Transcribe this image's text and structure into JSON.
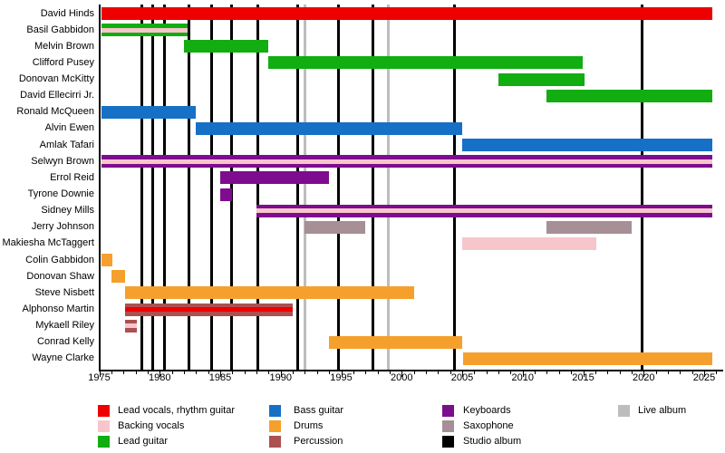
{
  "chart_data": {
    "type": "gantt-timeline",
    "description": "Band membership timeline: horizontal bars per member by instrument color; vertical lines mark albums",
    "x_axis": {
      "min": 1975,
      "max": 2026,
      "labeled_ticks": [
        "1975",
        "1980",
        "1985",
        "1990",
        "1995",
        "2000",
        "2005",
        "2010",
        "2015",
        "2020",
        "2025"
      ],
      "labeled_tick_years": [
        1975,
        1980,
        1985,
        1990,
        1995,
        2000,
        2005,
        2010,
        2015,
        2020,
        2025
      ],
      "minor_tick_every_years": 1
    },
    "colors": {
      "lead_vocals_rhythm_guitar": "#ee0000",
      "backing_vocals": "#f7c6cc",
      "lead_guitar": "#11ad11",
      "bass_guitar": "#1570c6",
      "drums": "#f5a02d",
      "percussion": "#ac5050",
      "keyboards": "#7e0c8e",
      "saxophone": "#a78f96",
      "studio_album": "#000000",
      "live_album": "#bdbdbd"
    },
    "members": [
      {
        "name": "David Hinds",
        "roles": [
          "Lead vocals, rhythm guitar"
        ],
        "color": "#ee0000",
        "stripe": null,
        "spans": [
          {
            "start": 1975.2,
            "end": 2025.7
          }
        ]
      },
      {
        "name": "Basil Gabbidon",
        "roles": [
          "Lead guitar",
          "Backing vocals"
        ],
        "color": "#11ad11",
        "stripe": "#f7c6cc",
        "spans": [
          {
            "start": 1975.2,
            "end": 1982.3
          }
        ]
      },
      {
        "name": "Melvin Brown",
        "roles": [
          "Lead guitar"
        ],
        "color": "#11ad11",
        "stripe": null,
        "spans": [
          {
            "start": 1982.0,
            "end": 1989.0
          }
        ]
      },
      {
        "name": "Clifford Pusey",
        "roles": [
          "Lead guitar"
        ],
        "color": "#11ad11",
        "stripe": null,
        "spans": [
          {
            "start": 1989.0,
            "end": 2015.0
          }
        ]
      },
      {
        "name": "Donovan McKitty",
        "roles": [
          "Lead guitar"
        ],
        "color": "#11ad11",
        "stripe": null,
        "spans": [
          {
            "start": 2008.0,
            "end": 2015.1
          }
        ]
      },
      {
        "name": "David Ellecirri Jr.",
        "roles": [
          "Lead guitar"
        ],
        "color": "#11ad11",
        "stripe": null,
        "spans": [
          {
            "start": 2012.0,
            "end": 2025.7
          }
        ]
      },
      {
        "name": "Ronald McQueen",
        "roles": [
          "Bass guitar"
        ],
        "color": "#1570c6",
        "stripe": null,
        "spans": [
          {
            "start": 1975.2,
            "end": 1983.0
          }
        ]
      },
      {
        "name": "Alvin Ewen",
        "roles": [
          "Bass guitar"
        ],
        "color": "#1570c6",
        "stripe": null,
        "spans": [
          {
            "start": 1983.0,
            "end": 2005.0
          }
        ]
      },
      {
        "name": "Amlak Tafari",
        "roles": [
          "Bass guitar"
        ],
        "color": "#1570c6",
        "stripe": null,
        "spans": [
          {
            "start": 2005.0,
            "end": 2025.7
          }
        ]
      },
      {
        "name": "Selwyn Brown",
        "roles": [
          "Keyboards",
          "Backing vocals"
        ],
        "color": "#7e0c8e",
        "stripe": "#f7c6cc",
        "spans": [
          {
            "start": 1975.2,
            "end": 2025.7
          }
        ]
      },
      {
        "name": "Errol Reid",
        "roles": [
          "Keyboards"
        ],
        "color": "#7e0c8e",
        "stripe": null,
        "spans": [
          {
            "start": 1985.0,
            "end": 1994.0
          }
        ]
      },
      {
        "name": "Tyrone Downie",
        "roles": [
          "Keyboards"
        ],
        "color": "#7e0c8e",
        "stripe": null,
        "spans": [
          {
            "start": 1985.0,
            "end": 1986.0
          }
        ]
      },
      {
        "name": "Sidney Mills",
        "roles": [
          "Keyboards",
          "Backing vocals"
        ],
        "color": "#7e0c8e",
        "stripe": "#f7c6cc",
        "spans": [
          {
            "start": 1988.0,
            "end": 2025.7
          }
        ]
      },
      {
        "name": "Jerry Johnson",
        "roles": [
          "Saxophone"
        ],
        "color": "#a78f96",
        "stripe": null,
        "spans": [
          {
            "start": 1992.0,
            "end": 1997.0
          },
          {
            "start": 2012.0,
            "end": 2019.0
          }
        ]
      },
      {
        "name": "Makiesha McTaggert",
        "roles": [
          "Backing vocals"
        ],
        "color": "#f7c6cc",
        "stripe": null,
        "spans": [
          {
            "start": 2005.0,
            "end": 2016.1
          }
        ]
      },
      {
        "name": "Colin Gabbidon",
        "roles": [
          "Drums"
        ],
        "color": "#f5a02d",
        "stripe": null,
        "spans": [
          {
            "start": 1975.2,
            "end": 1976.1
          }
        ]
      },
      {
        "name": "Donovan Shaw",
        "roles": [
          "Drums"
        ],
        "color": "#f5a02d",
        "stripe": null,
        "spans": [
          {
            "start": 1976.0,
            "end": 1977.1
          }
        ]
      },
      {
        "name": "Steve Nisbett",
        "roles": [
          "Drums"
        ],
        "color": "#f5a02d",
        "stripe": null,
        "spans": [
          {
            "start": 1977.1,
            "end": 2001.0
          }
        ]
      },
      {
        "name": "Alphonso Martin",
        "roles": [
          "Percussion",
          "Lead vocals, rhythm guitar"
        ],
        "color": "#ac5050",
        "stripe": "#ee0000",
        "spans": [
          {
            "start": 1977.1,
            "end": 1991.0
          }
        ]
      },
      {
        "name": "Mykaell Riley",
        "roles": [
          "Percussion",
          "Backing vocals"
        ],
        "color": "#ac5050",
        "stripe": "#f7c6cc",
        "spans": [
          {
            "start": 1977.1,
            "end": 1978.1
          }
        ]
      },
      {
        "name": "Conrad Kelly",
        "roles": [
          "Drums"
        ],
        "color": "#f5a02d",
        "stripe": null,
        "spans": [
          {
            "start": 1994.0,
            "end": 2005.0
          }
        ]
      },
      {
        "name": "Wayne Clarke",
        "roles": [
          "Drums"
        ],
        "color": "#f5a02d",
        "stripe": null,
        "spans": [
          {
            "start": 2005.1,
            "end": 2025.7
          }
        ]
      }
    ],
    "albums": {
      "studio": {
        "label": "Studio album",
        "color": "#000000",
        "years": [
          1978.5,
          1979.4,
          1980.4,
          1982.4,
          1984.3,
          1985.9,
          1988.1,
          1991.4,
          1994.8,
          1997.6,
          2004.4,
          2019.9
        ]
      },
      "live": {
        "label": "Live album",
        "color": "#bdbdbd",
        "years": [
          1992.0,
          1998.9
        ]
      }
    },
    "legend": [
      {
        "label": "Lead vocals, rhythm guitar",
        "color": "#ee0000"
      },
      {
        "label": "Backing vocals",
        "color": "#f7c6cc"
      },
      {
        "label": "Lead guitar",
        "color": "#11ad11"
      },
      {
        "label": "Bass guitar",
        "color": "#1570c6"
      },
      {
        "label": "Drums",
        "color": "#f5a02d"
      },
      {
        "label": "Percussion",
        "color": "#ac5050"
      },
      {
        "label": "Keyboards",
        "color": "#7e0c8e"
      },
      {
        "label": "Saxophone",
        "color": "#a78f96"
      },
      {
        "label": "Studio album",
        "color": "#000000"
      },
      {
        "label": "Live album",
        "color": "#bdbdbd"
      }
    ]
  }
}
